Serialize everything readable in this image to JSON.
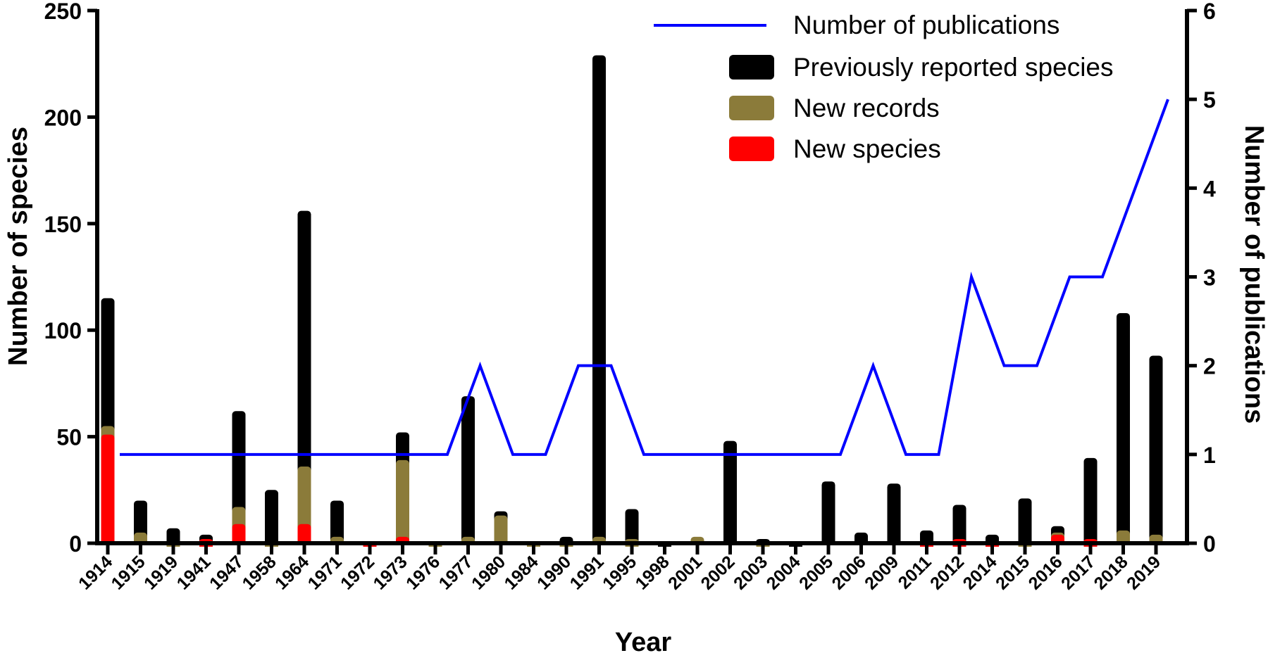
{
  "chart_data": {
    "type": "bar",
    "subtype": "stacked-bar-with-line-secondary-axis",
    "title": "",
    "xlabel": "Year",
    "ylabel": "Number of species",
    "y2label": "Number of publications",
    "ylim": [
      0,
      250
    ],
    "yticks": [
      0,
      50,
      100,
      150,
      200,
      250
    ],
    "y2lim": [
      0,
      6
    ],
    "y2ticks": [
      0,
      1,
      2,
      3,
      4,
      5,
      6
    ],
    "grid": false,
    "legend_position": "top-right",
    "categories": [
      "1914",
      "1915",
      "1919",
      "1941",
      "1947",
      "1958",
      "1964",
      "1971",
      "1972",
      "1973",
      "1976",
      "1977",
      "1980",
      "1984",
      "1990",
      "1991",
      "1995",
      "1998",
      "2001",
      "2002",
      "2003",
      "2004",
      "2005",
      "2006",
      "2009",
      "2011",
      "2012",
      "2014",
      "2015",
      "2016",
      "2017",
      "2018",
      "2019"
    ],
    "series": [
      {
        "name": "New species",
        "type": "bar",
        "axis": "left",
        "color": "#ff0000",
        "values": [
          51,
          0,
          0,
          2,
          9,
          0,
          9,
          0,
          1,
          3,
          0,
          0,
          0,
          0,
          0,
          0,
          0,
          0,
          0,
          0,
          0,
          0,
          0,
          0,
          0,
          1,
          2,
          1,
          0,
          4,
          2,
          0,
          0
        ]
      },
      {
        "name": "New records",
        "type": "bar",
        "axis": "left",
        "color": "#8b7b3a",
        "values": [
          4,
          5,
          1,
          0,
          8,
          1,
          27,
          3,
          0,
          36,
          1,
          3,
          13,
          1,
          1,
          3,
          2,
          0,
          3,
          0,
          1,
          0,
          0,
          0,
          0,
          0,
          0,
          0,
          1,
          1,
          0,
          6,
          4
        ]
      },
      {
        "name": "Previously reported species",
        "type": "bar",
        "axis": "left",
        "color": "#000000",
        "values": [
          60,
          15,
          6,
          2,
          45,
          24,
          120,
          17,
          0,
          13,
          0,
          66,
          2,
          0,
          2,
          226,
          14,
          1,
          0,
          48,
          1,
          1,
          29,
          5,
          28,
          5,
          16,
          3,
          20,
          3,
          38,
          102,
          84
        ]
      },
      {
        "name": "Number of publications",
        "type": "line",
        "axis": "right",
        "color": "#0000ff",
        "values": [
          1,
          1,
          1,
          1,
          1,
          1,
          1,
          1,
          1,
          1,
          1,
          2,
          1,
          1,
          2,
          2,
          1,
          1,
          1,
          1,
          1,
          1,
          1,
          2,
          1,
          1,
          3,
          2,
          2,
          3,
          3,
          4,
          5
        ]
      }
    ],
    "stack_totals": [
      115,
      20,
      7,
      4,
      62,
      25,
      156,
      20,
      1,
      52,
      1,
      69,
      15,
      1,
      3,
      229,
      16,
      1,
      3,
      48,
      2,
      1,
      29,
      5,
      28,
      6,
      18,
      4,
      21,
      8,
      40,
      108,
      88
    ]
  },
  "legend": {
    "items": [
      {
        "label": "Number of publications",
        "swatch": "line",
        "color": "#0000ff"
      },
      {
        "label": "Previously reported species",
        "swatch": "box",
        "color": "#000000"
      },
      {
        "label": "New records",
        "swatch": "box",
        "color": "#8b7b3a"
      },
      {
        "label": "New species",
        "swatch": "box",
        "color": "#ff0000"
      }
    ]
  }
}
